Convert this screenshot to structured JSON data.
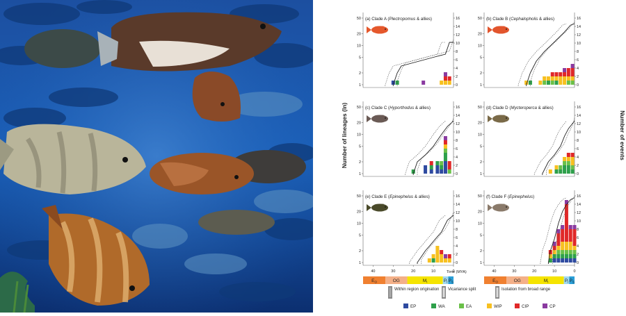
{
  "photo": {
    "subject": "grouper-school-photo"
  },
  "figure": {
    "y_left_label": "Number of lineages (ln)",
    "y_right_label": "Number of events",
    "x_label": "Time (MYA)",
    "left_ticks": [
      "50",
      "20",
      "10",
      "5",
      "2",
      "1"
    ],
    "right_ticks": [
      "16",
      "14",
      "12",
      "10",
      "8",
      "6",
      "4",
      "2",
      "0"
    ],
    "x_ticks": [
      "40",
      "30",
      "20",
      "10",
      "0"
    ],
    "panels": [
      {
        "letter": "(a) Clade A (",
        "genus": "Plectropomus",
        "suffix": " & allies)",
        "fish_color": "#e5582c"
      },
      {
        "letter": "(b) Clade B (",
        "genus": "Cephalopholis",
        "suffix": " & allies)",
        "fish_color": "#e2552d"
      },
      {
        "letter": "(c) Clade C (",
        "genus": "Hyporthodus",
        "suffix": " & allies)",
        "fish_color": "#6a5a55"
      },
      {
        "letter": "(d) Clade D (",
        "genus": "Mycteroperca",
        "suffix": " & allies)",
        "fish_color": "#7a6a48"
      },
      {
        "letter": "(e) Clade E (",
        "genus": "Epinephelus",
        "suffix": " & allies)",
        "fish_color": "#4a4a2a"
      },
      {
        "letter": "(f) Clade F (",
        "genus": "Epinephelus",
        "suffix": ")",
        "fish_color": "#8a7a6a"
      }
    ],
    "epochs": [
      {
        "label": "E",
        "sub": "O",
        "color": "#f08030"
      },
      {
        "label": "OG",
        "sub": "",
        "color": "#f4b088"
      },
      {
        "label": "M",
        "sub": "i",
        "color": "#f5e400"
      },
      {
        "label": "P",
        "sub": "l",
        "color": "#9fd8f0"
      },
      {
        "label": "P",
        "sub": "S",
        "color": "#2a9fd8"
      }
    ],
    "event_legend": [
      "Within region origination",
      "Vicariance split",
      "Isolation from broad range"
    ],
    "regions": [
      {
        "code": "EP",
        "color": "#2e4aa0"
      },
      {
        "code": "WA",
        "color": "#2ea04a"
      },
      {
        "code": "EA",
        "color": "#6ac048"
      },
      {
        "code": "WIP",
        "color": "#f7c020"
      },
      {
        "code": "CIP",
        "color": "#e02828"
      },
      {
        "code": "CP",
        "color": "#8a3aa0"
      }
    ]
  },
  "chart_data": {
    "type": "bar",
    "xlabel": "Time (MYA)",
    "ylabel": "Number of lineages (ln)",
    "y2label": "Number of events",
    "xlim": [
      45,
      0
    ],
    "ylim": [
      1,
      50
    ],
    "y2lim": [
      0,
      16
    ],
    "panels": [
      {
        "id": "a",
        "ltt": [
          [
            30,
            1
          ],
          [
            28,
            2
          ],
          [
            26,
            3
          ],
          [
            10,
            5
          ],
          [
            4,
            6
          ],
          [
            2,
            12
          ],
          [
            0,
            12
          ]
        ],
        "bars": [
          {
            "t": 30,
            "stack": [
              1,
              0,
              0,
              0,
              0,
              0
            ]
          },
          {
            "t": 28,
            "stack": [
              0,
              1,
              0,
              0,
              0,
              0
            ]
          },
          {
            "t": 15,
            "stack": [
              0,
              0,
              0,
              0,
              0,
              1
            ]
          },
          {
            "t": 6,
            "stack": [
              0,
              0,
              0,
              1,
              0,
              0
            ]
          },
          {
            "t": 4,
            "stack": [
              0,
              0,
              0,
              1,
              1,
              1
            ]
          },
          {
            "t": 2,
            "stack": [
              0,
              0,
              0,
              1,
              1,
              0
            ]
          }
        ]
      },
      {
        "id": "b",
        "ltt": [
          [
            24,
            1
          ],
          [
            22,
            2
          ],
          [
            19,
            4
          ],
          [
            15,
            7
          ],
          [
            11,
            11
          ],
          [
            5,
            22
          ],
          [
            2,
            33
          ],
          [
            0,
            36
          ]
        ],
        "bars": [
          {
            "t": 24,
            "stack": [
              0,
              0,
              0,
              1,
              0,
              0
            ]
          },
          {
            "t": 22,
            "stack": [
              0,
              1,
              0,
              0,
              0,
              0
            ]
          },
          {
            "t": 17,
            "stack": [
              0,
              0,
              0,
              1,
              0,
              0
            ]
          },
          {
            "t": 15,
            "stack": [
              0,
              0,
              1,
              1,
              0,
              0
            ]
          },
          {
            "t": 13,
            "stack": [
              0,
              1,
              0,
              1,
              0,
              0
            ]
          },
          {
            "t": 11,
            "stack": [
              0,
              0,
              1,
              1,
              1,
              0
            ]
          },
          {
            "t": 9,
            "stack": [
              0,
              1,
              0,
              1,
              1,
              0
            ]
          },
          {
            "t": 7,
            "stack": [
              0,
              0,
              0,
              2,
              1,
              0
            ]
          },
          {
            "t": 5,
            "stack": [
              0,
              0,
              0,
              2,
              1,
              1
            ]
          },
          {
            "t": 3,
            "stack": [
              0,
              0,
              1,
              1,
              2,
              0
            ]
          },
          {
            "t": 1,
            "stack": [
              0,
              0,
              1,
              1,
              2,
              1
            ]
          }
        ]
      },
      {
        "id": "c",
        "ltt": [
          [
            20,
            1
          ],
          [
            18,
            2
          ],
          [
            14,
            3
          ],
          [
            10,
            5
          ],
          [
            6,
            10
          ],
          [
            3,
            16
          ],
          [
            0,
            22
          ]
        ],
        "bars": [
          {
            "t": 20,
            "stack": [
              0,
              1,
              0,
              0,
              0,
              0
            ]
          },
          {
            "t": 14,
            "stack": [
              2,
              0,
              0,
              0,
              0,
              0
            ]
          },
          {
            "t": 11,
            "stack": [
              1,
              1,
              0,
              0,
              1,
              0
            ]
          },
          {
            "t": 8,
            "stack": [
              2,
              1,
              0,
              0,
              0,
              0
            ]
          },
          {
            "t": 6,
            "stack": [
              1,
              1,
              1,
              0,
              0,
              0
            ]
          },
          {
            "t": 4,
            "stack": [
              3,
              2,
              1,
              1,
              1,
              1
            ]
          },
          {
            "t": 2,
            "stack": [
              0,
              0,
              1,
              0,
              2,
              0
            ]
          }
        ]
      },
      {
        "id": "d",
        "ltt": [
          [
            16,
            1
          ],
          [
            13,
            2
          ],
          [
            10,
            3
          ],
          [
            7,
            5
          ],
          [
            5,
            9
          ],
          [
            3,
            14
          ],
          [
            0,
            22
          ]
        ],
        "bars": [
          {
            "t": 12,
            "stack": [
              0,
              0,
              0,
              1,
              0,
              0
            ]
          },
          {
            "t": 9,
            "stack": [
              0,
              1,
              0,
              1,
              0,
              0
            ]
          },
          {
            "t": 7,
            "stack": [
              0,
              1,
              1,
              0,
              0,
              0
            ]
          },
          {
            "t": 5,
            "stack": [
              0,
              2,
              1,
              1,
              0,
              0
            ]
          },
          {
            "t": 3,
            "stack": [
              0,
              2,
              1,
              1,
              1,
              0
            ]
          },
          {
            "t": 1,
            "stack": [
              0,
              1,
              1,
              2,
              1,
              0
            ]
          }
        ]
      },
      {
        "id": "e",
        "ltt": [
          [
            18,
            1
          ],
          [
            14,
            2
          ],
          [
            11,
            3
          ],
          [
            9,
            4
          ],
          [
            6,
            6
          ],
          [
            3,
            12
          ],
          [
            0,
            16
          ]
        ],
        "bars": [
          {
            "t": 12,
            "stack": [
              0,
              0,
              0,
              1,
              0,
              0
            ]
          },
          {
            "t": 10,
            "stack": [
              0,
              1,
              0,
              1,
              0,
              0
            ]
          },
          {
            "t": 8,
            "stack": [
              0,
              0,
              0,
              4,
              0,
              0
            ]
          },
          {
            "t": 6,
            "stack": [
              0,
              0,
              0,
              2,
              1,
              0
            ]
          },
          {
            "t": 4,
            "stack": [
              0,
              0,
              0,
              1,
              0,
              1
            ]
          },
          {
            "t": 2,
            "stack": [
              0,
              0,
              0,
              1,
              1,
              0
            ]
          }
        ]
      },
      {
        "id": "f",
        "ltt": [
          [
            13,
            1
          ],
          [
            12,
            2
          ],
          [
            10,
            4
          ],
          [
            8,
            10
          ],
          [
            6,
            20
          ],
          [
            4,
            30
          ],
          [
            2,
            40
          ],
          [
            0,
            45
          ]
        ],
        "bars": [
          {
            "t": 12,
            "stack": [
              0,
              1,
              0,
              1,
              1,
              0
            ]
          },
          {
            "t": 10,
            "stack": [
              1,
              1,
              0,
              1,
              1,
              1
            ]
          },
          {
            "t": 8,
            "stack": [
              1,
              1,
              1,
              1,
              3,
              1
            ]
          },
          {
            "t": 6,
            "stack": [
              1,
              1,
              1,
              2,
              3,
              1
            ]
          },
          {
            "t": 4,
            "stack": [
              1,
              1,
              1,
              2,
              9,
              1
            ]
          },
          {
            "t": 2,
            "stack": [
              1,
              1,
              1,
              2,
              3,
              1
            ]
          },
          {
            "t": 0,
            "stack": [
              1,
              1,
              1,
              1,
              4,
              1
            ]
          }
        ]
      }
    ]
  }
}
